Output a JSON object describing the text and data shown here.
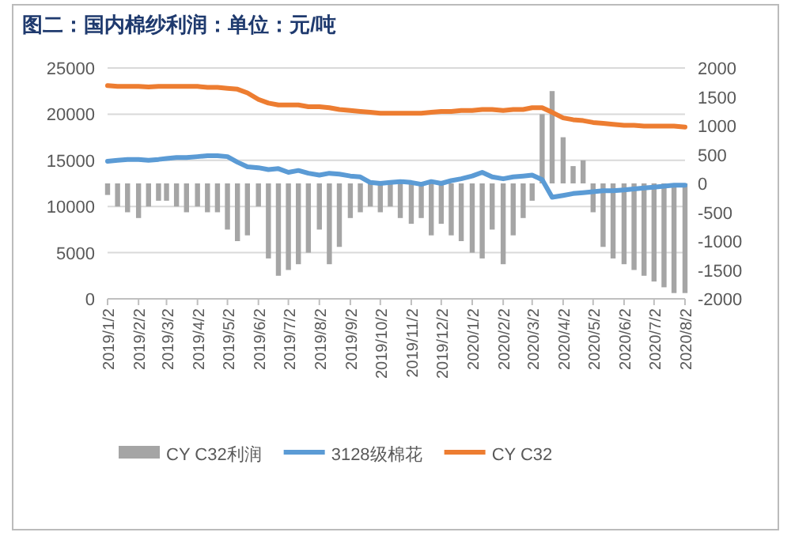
{
  "chart_data": {
    "type": "line",
    "title": "图二：国内棉纱利润：单位：元/吨",
    "x": [
      "2019-01-02",
      "2019-01-12",
      "2019-01-22",
      "2019-02-02",
      "2019-02-12",
      "2019-02-22",
      "2019-03-02",
      "2019-03-12",
      "2019-03-22",
      "2019-04-02",
      "2019-04-12",
      "2019-04-22",
      "2019-05-02",
      "2019-05-12",
      "2019-05-22",
      "2019-06-02",
      "2019-06-12",
      "2019-06-22",
      "2019-07-02",
      "2019-07-12",
      "2019-07-22",
      "2019-08-02",
      "2019-08-12",
      "2019-08-22",
      "2019-09-02",
      "2019-09-12",
      "2019-09-22",
      "2019-10-02",
      "2019-10-12",
      "2019-10-22",
      "2019-11-02",
      "2019-11-12",
      "2019-11-22",
      "2019-12-02",
      "2019-12-12",
      "2019-12-22",
      "2020-01-02",
      "2020-01-12",
      "2020-01-22",
      "2020-02-02",
      "2020-02-12",
      "2020-02-22",
      "2020-03-02",
      "2020-03-12",
      "2020-03-22",
      "2020-04-02",
      "2020-04-12",
      "2020-04-22",
      "2020-05-02",
      "2020-05-12",
      "2020-05-22",
      "2020-06-02",
      "2020-06-12",
      "2020-06-22",
      "2020-07-02",
      "2020-07-12",
      "2020-07-22",
      "2020-08-02"
    ],
    "series": [
      {
        "name": "CY C32利润",
        "type": "bar",
        "axis": "y2",
        "color": "#a5a5a5",
        "values": [
          -200,
          -400,
          -500,
          -600,
          -400,
          -300,
          -300,
          -400,
          -500,
          -400,
          -500,
          -500,
          -800,
          -1000,
          -900,
          -400,
          -1300,
          -1600,
          -1500,
          -1400,
          -1200,
          -800,
          -1400,
          -1100,
          -600,
          -500,
          -400,
          -500,
          -400,
          -600,
          -700,
          -600,
          -900,
          -700,
          -900,
          -1000,
          -1200,
          -1300,
          -800,
          -1400,
          -900,
          -600,
          -300,
          1200,
          1600,
          800,
          300,
          400,
          -500,
          -1100,
          -1300,
          -1400,
          -1500,
          -1600,
          -1700,
          -1800,
          -1900,
          -1900
        ]
      },
      {
        "name": "3128级棉花",
        "color": "#5b9bd5",
        "values": [
          14900,
          15000,
          15100,
          15100,
          15000,
          15100,
          15200,
          15300,
          15300,
          15400,
          15500,
          15500,
          15400,
          14800,
          14300,
          14200,
          14000,
          14100,
          13700,
          13900,
          13600,
          13400,
          13600,
          13500,
          13300,
          13200,
          12600,
          12500,
          12600,
          12700,
          12600,
          12400,
          12700,
          12500,
          12800,
          13000,
          13300,
          13700,
          13200,
          13000,
          13200,
          13300,
          13400,
          12900,
          11000,
          11200,
          11400,
          11500,
          11600,
          11700,
          11700,
          11800,
          11900,
          12000,
          12100,
          12200,
          12300,
          12300
        ]
      },
      {
        "name": "CY C32",
        "color": "#ed7d31",
        "values": [
          23100,
          23000,
          23000,
          23000,
          22950,
          23000,
          23000,
          23000,
          23000,
          23000,
          22900,
          22900,
          22800,
          22700,
          22300,
          21600,
          21200,
          21000,
          21000,
          21000,
          20800,
          20800,
          20700,
          20500,
          20400,
          20300,
          20200,
          20100,
          20100,
          20100,
          20100,
          20100,
          20200,
          20300,
          20300,
          20400,
          20400,
          20500,
          20500,
          20400,
          20500,
          20500,
          20700,
          20700,
          20200,
          19600,
          19400,
          19300,
          19100,
          19000,
          18900,
          18800,
          18800,
          18700,
          18700,
          18700,
          18700,
          18600
        ]
      }
    ],
    "xlim": [
      "2019-01-02",
      "2020-08-02"
    ],
    "xticks": [
      {
        "value": "2019-01-02",
        "label": "2019/1/2"
      },
      {
        "value": "2019-02-02",
        "label": "2019/2/2"
      },
      {
        "value": "2019-03-02",
        "label": "2019/3/2"
      },
      {
        "value": "2019-04-02",
        "label": "2019/4/2"
      },
      {
        "value": "2019-05-02",
        "label": "2019/5/2"
      },
      {
        "value": "2019-06-02",
        "label": "2019/6/2"
      },
      {
        "value": "2019-07-02",
        "label": "2019/7/2"
      },
      {
        "value": "2019-08-02",
        "label": "2019/8/2"
      },
      {
        "value": "2019-09-02",
        "label": "2019/9/2"
      },
      {
        "value": "2019-10-02",
        "label": "2019/10/2"
      },
      {
        "value": "2019-11-02",
        "label": "2019/11/2"
      },
      {
        "value": "2019-12-02",
        "label": "2019/12/2"
      },
      {
        "value": "2020-01-02",
        "label": "2020/1/2"
      },
      {
        "value": "2020-02-02",
        "label": "2020/2/2"
      },
      {
        "value": "2020-03-02",
        "label": "2020/3/2"
      },
      {
        "value": "2020-04-02",
        "label": "2020/4/2"
      },
      {
        "value": "2020-05-02",
        "label": "2020/5/2"
      },
      {
        "value": "2020-06-02",
        "label": "2020/6/2"
      },
      {
        "value": "2020-07-02",
        "label": "2020/7/2"
      },
      {
        "value": "2020-08-02",
        "label": "2020/8/2"
      }
    ],
    "ylim": [
      0,
      25000
    ],
    "yticks": [
      0,
      5000,
      10000,
      15000,
      20000,
      25000
    ],
    "y2lim": [
      -2000,
      2000
    ],
    "y2ticks": [
      -2000,
      -1500,
      -1000,
      -500,
      0,
      500,
      1000,
      1500,
      2000
    ],
    "grid": "y",
    "legend": "bottom"
  }
}
